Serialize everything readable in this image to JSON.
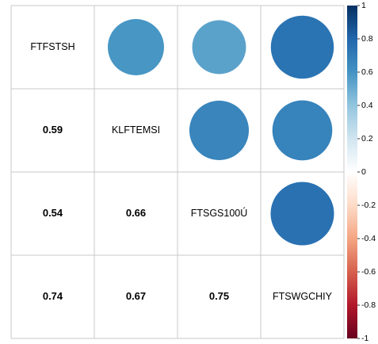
{
  "chart_data": {
    "type": "correlation",
    "variables": [
      "FTFSTSH",
      "KLFTEMSI",
      "FTSGS100Ú",
      "FTSWGCHIY"
    ],
    "matrix": [
      [],
      [
        0.59
      ],
      [
        0.54,
        0.66
      ],
      [
        0.74,
        0.67,
        0.75
      ]
    ],
    "colorscale": [
      "#67001F",
      "#B2182B",
      "#D6604D",
      "#F4A582",
      "#FDDBC7",
      "#FFFFFF",
      "#D1E5F0",
      "#92C5DE",
      "#4393C3",
      "#2166AC",
      "#053061"
    ],
    "clim": [
      -1,
      1
    ],
    "cticks": [
      -1,
      -0.8,
      -0.6,
      -0.4,
      -0.2,
      0,
      0.2,
      0.4,
      0.6,
      0.8,
      1
    ]
  }
}
